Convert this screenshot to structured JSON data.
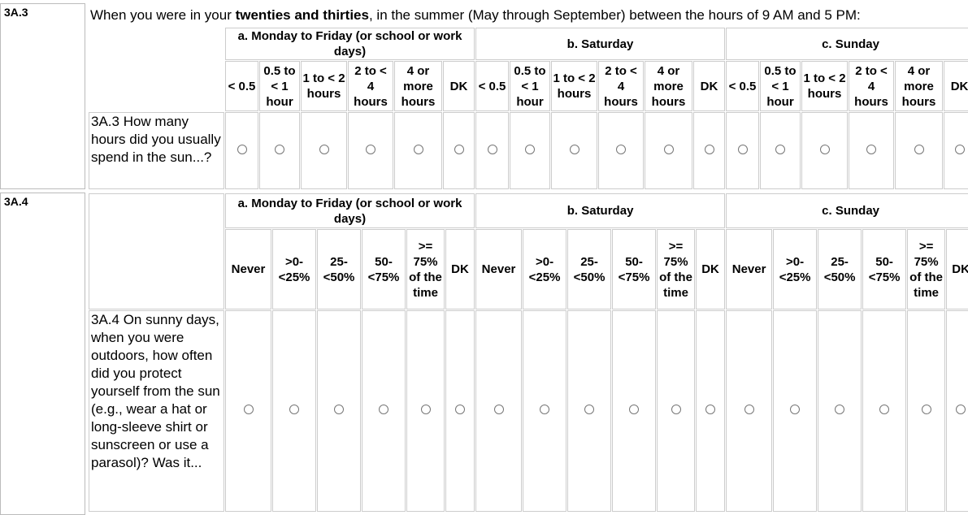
{
  "questions": [
    {
      "id": "3A.3",
      "intro": {
        "before": "When you were in your ",
        "bold": "twenties and thirties",
        "after": ", in the summer (May through September) between the hours of 9 AM and 5 PM:"
      },
      "groups": [
        "a. Monday to Friday (or school or work days)",
        "b. Saturday",
        "c. Sunday"
      ],
      "options": [
        "< 0.5",
        "0.5 to < 1 hour",
        "1 to < 2 hours",
        "2 to < 4 hours",
        "4 or more hours",
        "DK"
      ],
      "question": "3A.3 How many hours did you usually spend in the sun...?"
    },
    {
      "id": "3A.4",
      "groups": [
        "a. Monday to Friday (or school or work days)",
        "b. Saturday",
        "c. Sunday"
      ],
      "options": [
        "Never",
        ">0-<25%",
        "25-<50%",
        "50-<75%",
        ">= 75% of the time",
        "DK"
      ],
      "question": "3A.4 On sunny days, when you were outdoors, how often did you protect yourself from the sun (e.g., wear a hat or long-sleeve shirt or sunscreen or use a parasol)? Was it..."
    }
  ]
}
